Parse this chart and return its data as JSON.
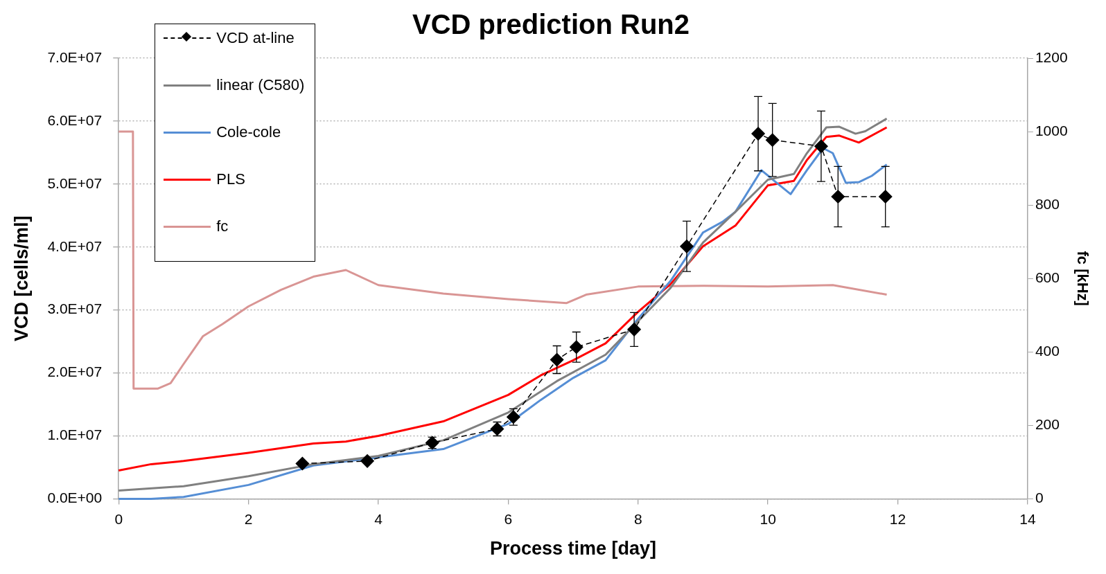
{
  "chart_data": {
    "type": "line",
    "title": "VCD prediction Run2",
    "xlabel": "Process time [day]",
    "ylabel": "VCD [cells/ml]",
    "y2label": "fc [kHz]",
    "xlim": [
      0,
      14
    ],
    "xticks": [
      0,
      2,
      4,
      6,
      8,
      10,
      12,
      14
    ],
    "ylim": [
      0,
      70000000
    ],
    "yticks": [
      {
        "value": 0,
        "label": "0.0E+00"
      },
      {
        "value": 10000000,
        "label": "1.0E+07"
      },
      {
        "value": 20000000,
        "label": "2.0E+07"
      },
      {
        "value": 30000000,
        "label": "3.0E+07"
      },
      {
        "value": 40000000,
        "label": "4.0E+07"
      },
      {
        "value": 50000000,
        "label": "5.0E+07"
      },
      {
        "value": 60000000,
        "label": "6.0E+07"
      },
      {
        "value": 70000000,
        "label": "7.0E+07"
      }
    ],
    "y2lim": [
      0,
      1200
    ],
    "y2ticks": [
      0,
      200,
      400,
      600,
      800,
      1000,
      1200
    ],
    "grid": "y",
    "legend": "top left",
    "series": [
      {
        "name": "VCD at-line",
        "color": "#000000",
        "marker": "diamond",
        "line_style": "dashed",
        "x": [
          2.83,
          3.83,
          4.83,
          5.83,
          6.08,
          6.75,
          7.05,
          7.94,
          8.75,
          9.85,
          10.07,
          10.82,
          11.08,
          11.81
        ],
        "values": [
          5600000,
          6000000,
          8900000,
          11100000,
          13000000,
          22100000,
          24100000,
          26900000,
          40100000,
          58000000,
          57000000,
          56000000,
          48000000,
          48000000
        ],
        "errors": [
          null,
          null,
          900000,
          1100000,
          1300000,
          2200000,
          2400000,
          2700000,
          4000000,
          5900000,
          5800000,
          5600000,
          4800000,
          4800000
        ]
      },
      {
        "name": "linear (C580)",
        "color": "#808080",
        "marker": "none",
        "line_style": "solid",
        "x": [
          0,
          1,
          2,
          3,
          4,
          5,
          6,
          6.75,
          7.5,
          8,
          8.5,
          9,
          9.5,
          10,
          10.4,
          10.6,
          10.9,
          11.1,
          11.35,
          11.5,
          11.83
        ],
        "values": [
          1300000,
          2000000,
          3600000,
          5500000,
          6800000,
          9300000,
          13700000,
          18700000,
          22900000,
          28200000,
          33500000,
          40700000,
          45600000,
          50700000,
          51600000,
          54900000,
          59000000,
          59100000,
          58000000,
          58400000,
          60400000
        ]
      },
      {
        "name": "Cole-cole",
        "color": "#558ed5",
        "marker": "none",
        "line_style": "solid",
        "x": [
          0,
          0.5,
          1,
          2,
          3,
          4,
          5,
          6,
          6.5,
          7,
          7.5,
          8,
          8.5,
          9,
          9.3,
          9.5,
          9.9,
          10.1,
          10.35,
          10.6,
          10.85,
          11,
          11.2,
          11.4,
          11.6,
          11.83
        ],
        "values": [
          0,
          0,
          300000,
          2200000,
          5300000,
          6600000,
          7900000,
          11900000,
          15700000,
          19200000,
          22000000,
          28600000,
          34600000,
          42300000,
          44000000,
          45600000,
          52200000,
          50500000,
          48400000,
          52200000,
          55700000,
          54900000,
          50200000,
          50300000,
          51300000,
          53100000
        ]
      },
      {
        "name": "PLS",
        "color": "#ff0000",
        "marker": "none",
        "line_style": "solid",
        "x": [
          0,
          0.5,
          1,
          2,
          3,
          3.5,
          4,
          5,
          6,
          6.5,
          7,
          7.5,
          8,
          8.5,
          9,
          9.5,
          10,
          10.4,
          10.6,
          10.9,
          11.1,
          11.4,
          11.83
        ],
        "values": [
          4500000,
          5500000,
          6000000,
          7300000,
          8800000,
          9100000,
          10000000,
          12300000,
          16500000,
          19600000,
          22000000,
          24700000,
          29700000,
          34100000,
          40100000,
          43400000,
          49800000,
          50500000,
          53800000,
          57500000,
          57700000,
          56600000,
          59000000
        ]
      },
      {
        "name": "fc",
        "axis": "y2",
        "color": "#d99594",
        "marker": "none",
        "line_style": "solid",
        "x": [
          0,
          0.22,
          0.23,
          0.6,
          0.8,
          1,
          1.3,
          1.6,
          2,
          2.5,
          3,
          3.5,
          4,
          5,
          6,
          6.9,
          7.2,
          8,
          9,
          10,
          11,
          11.83
        ],
        "values": [
          1000,
          1000,
          300,
          300,
          315,
          367,
          443,
          476,
          524,
          569,
          605,
          623,
          582,
          559,
          544,
          533,
          556,
          578,
          580,
          578,
          582,
          556
        ]
      }
    ]
  }
}
